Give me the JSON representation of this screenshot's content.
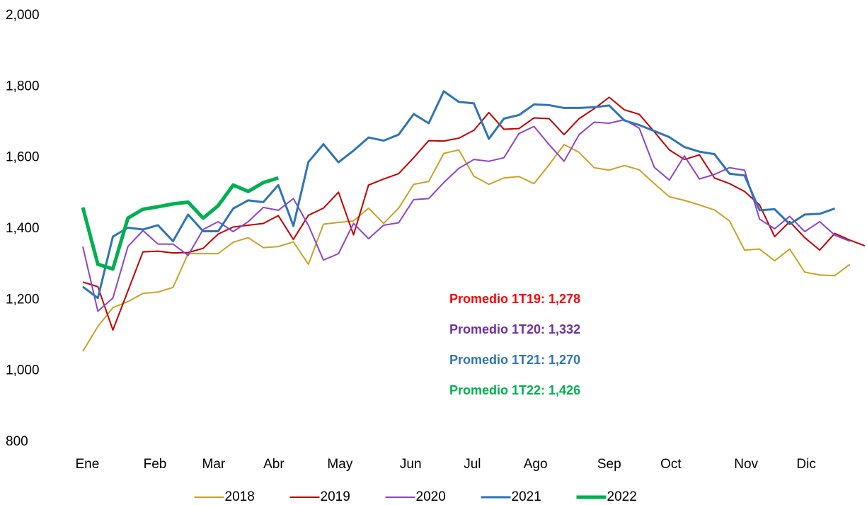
{
  "chart_data": {
    "type": "line",
    "x": [
      1,
      2,
      3,
      4,
      5,
      6,
      7,
      8,
      9,
      10,
      11,
      12,
      13,
      14,
      15,
      16,
      17,
      18,
      19,
      20,
      21,
      22,
      23,
      24,
      25,
      26,
      27,
      28,
      29,
      30,
      31,
      32,
      33,
      34,
      35,
      36,
      37,
      38,
      39,
      40,
      41,
      42,
      43,
      44,
      45,
      46,
      47,
      48,
      49,
      50,
      51,
      52,
      53
    ],
    "xlim": [
      1,
      53
    ],
    "xticks": [
      {
        "value": 1.3,
        "label": "Ene"
      },
      {
        "value": 5.8,
        "label": "Feb"
      },
      {
        "value": 9.7,
        "label": "Mar"
      },
      {
        "value": 13.7,
        "label": "Abr"
      },
      {
        "value": 18.1,
        "label": "May"
      },
      {
        "value": 22.8,
        "label": "Jun"
      },
      {
        "value": 26.9,
        "label": "Jul"
      },
      {
        "value": 31.1,
        "label": "Ago"
      },
      {
        "value": 36,
        "label": "Sep"
      },
      {
        "value": 40.1,
        "label": "Oct"
      },
      {
        "value": 45.1,
        "label": "Nov"
      },
      {
        "value": 49.1,
        "label": "Dic"
      }
    ],
    "ylim": [
      800,
      2000
    ],
    "yticks": [
      {
        "value": 800,
        "label": "800"
      },
      {
        "value": 1000,
        "label": "1,000"
      },
      {
        "value": 1200,
        "label": "1,200"
      },
      {
        "value": 1400,
        "label": "1,400"
      },
      {
        "value": 1600,
        "label": "1,600"
      },
      {
        "value": 1800,
        "label": "1,800"
      },
      {
        "value": 2000,
        "label": "2,000"
      }
    ],
    "grid": false,
    "legend": "bottom",
    "series": [
      {
        "name": "2018",
        "color": "#c9a227",
        "width": 2,
        "values": [
          1055,
          1125,
          1178,
          1195,
          1218,
          1222,
          1235,
          1330,
          1330,
          1330,
          1362,
          1375,
          1347,
          1350,
          1363,
          1300,
          1413,
          1418,
          1422,
          1458,
          1415,
          1458,
          1525,
          1533,
          1612,
          1622,
          1548,
          1525,
          1543,
          1547,
          1527,
          1580,
          1637,
          1615,
          1572,
          1565,
          1578,
          1566,
          1527,
          1490,
          1480,
          1467,
          1453,
          1422,
          1340,
          1343,
          1310,
          1343,
          1278,
          1270,
          1268,
          1300,
          null
        ]
      },
      {
        "name": "2019",
        "color": "#c00000",
        "width": 2,
        "values": [
          1250,
          1237,
          1115,
          1225,
          1335,
          1337,
          1332,
          1333,
          1345,
          1385,
          1405,
          1410,
          1415,
          1437,
          1370,
          1438,
          1458,
          1503,
          1383,
          1523,
          1540,
          1555,
          1600,
          1648,
          1647,
          1655,
          1677,
          1727,
          1680,
          1682,
          1712,
          1710,
          1665,
          1710,
          1738,
          1770,
          1735,
          1722,
          1673,
          1622,
          1595,
          1608,
          1543,
          1527,
          1505,
          1467,
          1378,
          1420,
          1375,
          1340,
          1387,
          1368,
          1352
        ]
      },
      {
        "name": "2020",
        "color": "#8e44c8",
        "width": 2,
        "values": [
          1350,
          1168,
          1205,
          1350,
          1395,
          1357,
          1357,
          1325,
          1398,
          1420,
          1392,
          1420,
          1460,
          1452,
          1485,
          1410,
          1312,
          1330,
          1415,
          1372,
          1410,
          1417,
          1482,
          1485,
          1530,
          1570,
          1595,
          1590,
          1600,
          1668,
          1688,
          1637,
          1590,
          1665,
          1700,
          1697,
          1707,
          1683,
          1573,
          1537,
          1605,
          1540,
          1553,
          1572,
          1565,
          1427,
          1400,
          1435,
          1392,
          1420,
          1382,
          1365,
          null
        ]
      },
      {
        "name": "2021",
        "color": "#2e75b6",
        "width": 3,
        "values": [
          1237,
          1205,
          1378,
          1403,
          1398,
          1410,
          1365,
          1440,
          1393,
          1393,
          1457,
          1480,
          1475,
          1523,
          1408,
          1588,
          1638,
          1587,
          1620,
          1657,
          1648,
          1665,
          1723,
          1697,
          1787,
          1757,
          1753,
          1653,
          1710,
          1720,
          1750,
          1748,
          1740,
          1740,
          1742,
          1747,
          1705,
          1692,
          1675,
          1658,
          1630,
          1617,
          1610,
          1555,
          1550,
          1452,
          1455,
          1413,
          1440,
          1442,
          1457,
          null,
          null
        ]
      },
      {
        "name": "2022",
        "color": "#00b050",
        "width": 5,
        "values": [
          1460,
          1300,
          1287,
          1430,
          1455,
          1462,
          1470,
          1475,
          1430,
          1465,
          1523,
          1505,
          1530,
          1543,
          null,
          null,
          null,
          null,
          null,
          null,
          null,
          null,
          null,
          null,
          null,
          null,
          null,
          null,
          null,
          null,
          null,
          null,
          null,
          null,
          null,
          null,
          null,
          null,
          null,
          null,
          null,
          null,
          null,
          null,
          null,
          null,
          null,
          null,
          null,
          null,
          null,
          null,
          null
        ]
      }
    ],
    "annotations": [
      {
        "text": "Promedio 1T19: 1,278",
        "color": "#ff0000"
      },
      {
        "text": "Promedio 1T20: 1,332",
        "color": "#7030a0"
      },
      {
        "text": "Promedio 1T21: 1,270",
        "color": "#2e75b6"
      },
      {
        "text": "Promedio 1T22: 1,426",
        "color": "#00b050"
      }
    ]
  }
}
